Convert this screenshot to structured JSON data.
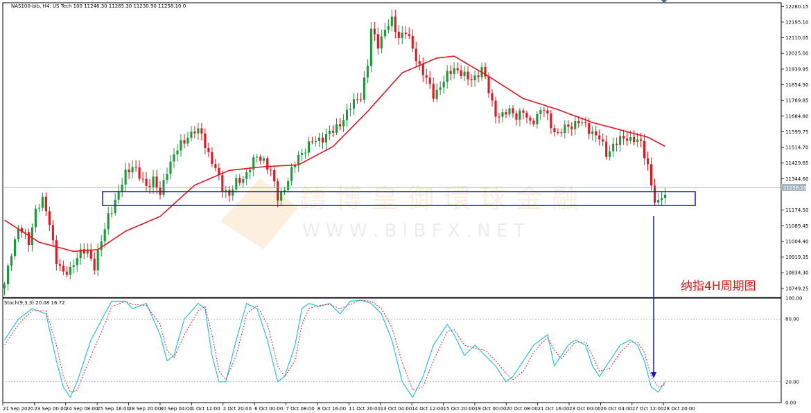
{
  "header_text": "NAS100-bib, H4:  US Tech 100  11246.30 11265.30 11230.90 11258.10  0",
  "current_price_label": "11258.10",
  "annotation": "纳指4H周期图",
  "watermark": {
    "cn": "鑄博皇御環球金融",
    "url": "W W W . B I B F X . N E T"
  },
  "colors": {
    "bull": "#1a9b3a",
    "bear": "#e8141c",
    "ma": "#e8141c",
    "stoch_k": "#22c6d8",
    "stoch_d": "#e8141c",
    "box": "#1414d2",
    "arrow": "#1414d2",
    "grid": "#999999"
  },
  "chart_data": [
    {
      "type": "candlestick",
      "symbol": "NAS100-bib",
      "timeframe": "H4",
      "ylim": [
        10700,
        12300
      ],
      "y_ticks": [
        "12280.15",
        "12195.10",
        "12110.05",
        "12025.00",
        "11939.95",
        "11854.90",
        "11769.85",
        "11684.80",
        "11599.75",
        "11514.70",
        "11429.65",
        "11344.60",
        "11174.50",
        "11089.45",
        "11004.40",
        "10919.35",
        "10834.30",
        "10749.25"
      ],
      "x_tick_labels": [
        "21 Sep 2020",
        "23 Sep 00:00",
        "24 Sep 08:00",
        "25 Sep 16:00",
        "28 Sep 20:00",
        "30 Sep 04:00",
        "1 Oct 12:00",
        "2 Oct 20:00",
        "6 Oct 00:00",
        "7 Oct 08:00",
        "8 Oct 16:00",
        "11 Oct 20:00",
        "13 Oct 04:00",
        "14 Oct 12:00",
        "15 Oct 20:00",
        "19 Oct 00:00",
        "20 Oct 08:00",
        "21 Oct 16:00",
        "23 Oct 00:00",
        "26 Oct 04:00",
        "27 Oct 12:00",
        "28 Oct 20:00"
      ],
      "support_zone": [
        11140,
        11210
      ],
      "close_path": [
        [
          0,
          10760
        ],
        [
          2,
          10950
        ],
        [
          4,
          11080
        ],
        [
          7,
          11000
        ],
        [
          9,
          11180
        ],
        [
          11,
          11220
        ],
        [
          13,
          11110
        ],
        [
          15,
          10900
        ],
        [
          17,
          10820
        ],
        [
          19,
          10860
        ],
        [
          21,
          10920
        ],
        [
          24,
          10960
        ],
        [
          26,
          10870
        ],
        [
          28,
          11000
        ],
        [
          30,
          11150
        ],
        [
          31,
          11185
        ],
        [
          33,
          11260
        ],
        [
          35,
          11380
        ],
        [
          37,
          11420
        ],
        [
          39,
          11350
        ],
        [
          41,
          11310
        ],
        [
          43,
          11340
        ],
        [
          45,
          11250
        ],
        [
          47,
          11400
        ],
        [
          49,
          11470
        ],
        [
          51,
          11530
        ],
        [
          53,
          11580
        ],
        [
          55,
          11600
        ],
        [
          57,
          11590
        ],
        [
          59,
          11480
        ],
        [
          61,
          11390
        ],
        [
          63,
          11300
        ],
        [
          65,
          11260
        ],
        [
          67,
          11320
        ],
        [
          69,
          11350
        ],
        [
          71,
          11410
        ],
        [
          73,
          11460
        ],
        [
          75,
          11450
        ],
        [
          77,
          11380
        ],
        [
          79,
          11240
        ],
        [
          81,
          11300
        ],
        [
          83,
          11380
        ],
        [
          85,
          11470
        ],
        [
          87,
          11510
        ],
        [
          89,
          11540
        ],
        [
          91,
          11560
        ],
        [
          93,
          11580
        ],
        [
          95,
          11600
        ],
        [
          97,
          11650
        ],
        [
          99,
          11700
        ],
        [
          101,
          11760
        ],
        [
          103,
          11800
        ],
        [
          105,
          11960
        ],
        [
          106,
          12150
        ],
        [
          108,
          12080
        ],
        [
          110,
          12150
        ],
        [
          112,
          12200
        ],
        [
          114,
          12120
        ],
        [
          116,
          12140
        ],
        [
          118,
          12050
        ],
        [
          120,
          11960
        ],
        [
          122,
          11880
        ],
        [
          124,
          11800
        ],
        [
          126,
          11850
        ],
        [
          128,
          11900
        ],
        [
          130,
          11950
        ],
        [
          132,
          11920
        ],
        [
          134,
          11880
        ],
        [
          136,
          11900
        ],
        [
          138,
          11940
        ],
        [
          140,
          11820
        ],
        [
          142,
          11700
        ],
        [
          144,
          11680
        ],
        [
          146,
          11720
        ],
        [
          148,
          11690
        ],
        [
          150,
          11700
        ],
        [
          152,
          11650
        ],
        [
          154,
          11690
        ],
        [
          156,
          11720
        ],
        [
          158,
          11640
        ],
        [
          160,
          11580
        ],
        [
          162,
          11620
        ],
        [
          164,
          11640
        ],
        [
          166,
          11650
        ],
        [
          168,
          11630
        ],
        [
          170,
          11600
        ],
        [
          172,
          11560
        ],
        [
          174,
          11480
        ],
        [
          176,
          11530
        ],
        [
          178,
          11550
        ],
        [
          180,
          11570
        ],
        [
          182,
          11560
        ],
        [
          184,
          11530
        ],
        [
          186,
          11420
        ],
        [
          187,
          11320
        ],
        [
          188,
          11220
        ],
        [
          189,
          11200
        ],
        [
          190,
          11250
        ],
        [
          191,
          11258
        ]
      ],
      "ma_path": [
        [
          0,
          11120
        ],
        [
          10,
          11000
        ],
        [
          20,
          10950
        ],
        [
          27,
          10960
        ],
        [
          35,
          11060
        ],
        [
          45,
          11140
        ],
        [
          55,
          11310
        ],
        [
          65,
          11390
        ],
        [
          75,
          11410
        ],
        [
          85,
          11420
        ],
        [
          95,
          11520
        ],
        [
          105,
          11710
        ],
        [
          115,
          11920
        ],
        [
          125,
          12000
        ],
        [
          130,
          12010
        ],
        [
          140,
          11900
        ],
        [
          150,
          11780
        ],
        [
          160,
          11720
        ],
        [
          170,
          11650
        ],
        [
          180,
          11600
        ],
        [
          186,
          11570
        ],
        [
          191,
          11520
        ]
      ],
      "total_bars": 192
    },
    {
      "type": "line",
      "title": "Stoch(9,3,3) 20.08 16.72",
      "ylim": [
        0,
        100
      ],
      "y_ticks": [
        "100.00",
        "80.00",
        "20.00",
        "0.00"
      ],
      "levels": [
        80,
        20
      ],
      "k_path": [
        [
          0,
          60
        ],
        [
          4,
          80
        ],
        [
          8,
          90
        ],
        [
          12,
          85
        ],
        [
          15,
          40
        ],
        [
          17,
          15
        ],
        [
          19,
          5
        ],
        [
          21,
          20
        ],
        [
          25,
          60
        ],
        [
          29,
          85
        ],
        [
          31,
          97
        ],
        [
          35,
          97
        ],
        [
          37,
          90
        ],
        [
          41,
          95
        ],
        [
          45,
          65
        ],
        [
          47,
          40
        ],
        [
          49,
          45
        ],
        [
          52,
          80
        ],
        [
          56,
          95
        ],
        [
          58,
          90
        ],
        [
          60,
          45
        ],
        [
          62,
          20
        ],
        [
          64,
          20
        ],
        [
          67,
          60
        ],
        [
          70,
          95
        ],
        [
          73,
          90
        ],
        [
          76,
          60
        ],
        [
          79,
          20
        ],
        [
          81,
          25
        ],
        [
          84,
          55
        ],
        [
          86,
          90
        ],
        [
          88,
          95
        ],
        [
          91,
          92
        ],
        [
          94,
          95
        ],
        [
          97,
          85
        ],
        [
          100,
          97
        ],
        [
          103,
          98
        ],
        [
          106,
          95
        ],
        [
          109,
          85
        ],
        [
          112,
          60
        ],
        [
          115,
          20
        ],
        [
          118,
          5
        ],
        [
          121,
          25
        ],
        [
          124,
          55
        ],
        [
          128,
          75
        ],
        [
          130,
          65
        ],
        [
          133,
          45
        ],
        [
          136,
          55
        ],
        [
          139,
          45
        ],
        [
          142,
          35
        ],
        [
          145,
          20
        ],
        [
          147,
          25
        ],
        [
          150,
          40
        ],
        [
          153,
          55
        ],
        [
          155,
          60
        ],
        [
          157,
          65
        ],
        [
          159,
          35
        ],
        [
          161,
          45
        ],
        [
          163,
          55
        ],
        [
          165,
          60
        ],
        [
          168,
          55
        ],
        [
          170,
          35
        ],
        [
          172,
          25
        ],
        [
          175,
          40
        ],
        [
          178,
          55
        ],
        [
          181,
          60
        ],
        [
          183,
          55
        ],
        [
          185,
          40
        ],
        [
          187,
          15
        ],
        [
          189,
          10
        ],
        [
          191,
          20
        ]
      ],
      "d_path": [
        [
          0,
          55
        ],
        [
          4,
          75
        ],
        [
          8,
          88
        ],
        [
          12,
          88
        ],
        [
          15,
          55
        ],
        [
          17,
          25
        ],
        [
          19,
          10
        ],
        [
          21,
          12
        ],
        [
          25,
          45
        ],
        [
          29,
          75
        ],
        [
          31,
          92
        ],
        [
          35,
          97
        ],
        [
          37,
          94
        ],
        [
          41,
          93
        ],
        [
          45,
          75
        ],
        [
          47,
          50
        ],
        [
          49,
          43
        ],
        [
          52,
          65
        ],
        [
          56,
          88
        ],
        [
          58,
          92
        ],
        [
          60,
          65
        ],
        [
          62,
          30
        ],
        [
          64,
          22
        ],
        [
          67,
          45
        ],
        [
          70,
          85
        ],
        [
          73,
          93
        ],
        [
          76,
          75
        ],
        [
          79,
          35
        ],
        [
          81,
          25
        ],
        [
          84,
          40
        ],
        [
          86,
          75
        ],
        [
          88,
          90
        ],
        [
          91,
          93
        ],
        [
          94,
          94
        ],
        [
          97,
          90
        ],
        [
          100,
          94
        ],
        [
          103,
          98
        ],
        [
          106,
          97
        ],
        [
          109,
          90
        ],
        [
          112,
          72
        ],
        [
          115,
          38
        ],
        [
          118,
          12
        ],
        [
          121,
          15
        ],
        [
          124,
          40
        ],
        [
          128,
          68
        ],
        [
          130,
          70
        ],
        [
          133,
          55
        ],
        [
          136,
          52
        ],
        [
          139,
          50
        ],
        [
          142,
          40
        ],
        [
          145,
          28
        ],
        [
          147,
          22
        ],
        [
          150,
          30
        ],
        [
          153,
          48
        ],
        [
          155,
          56
        ],
        [
          157,
          62
        ],
        [
          159,
          50
        ],
        [
          161,
          42
        ],
        [
          163,
          50
        ],
        [
          165,
          58
        ],
        [
          168,
          58
        ],
        [
          170,
          45
        ],
        [
          172,
          30
        ],
        [
          175,
          33
        ],
        [
          178,
          48
        ],
        [
          181,
          58
        ],
        [
          183,
          58
        ],
        [
          185,
          48
        ],
        [
          187,
          25
        ],
        [
          189,
          15
        ],
        [
          191,
          17
        ]
      ]
    }
  ]
}
